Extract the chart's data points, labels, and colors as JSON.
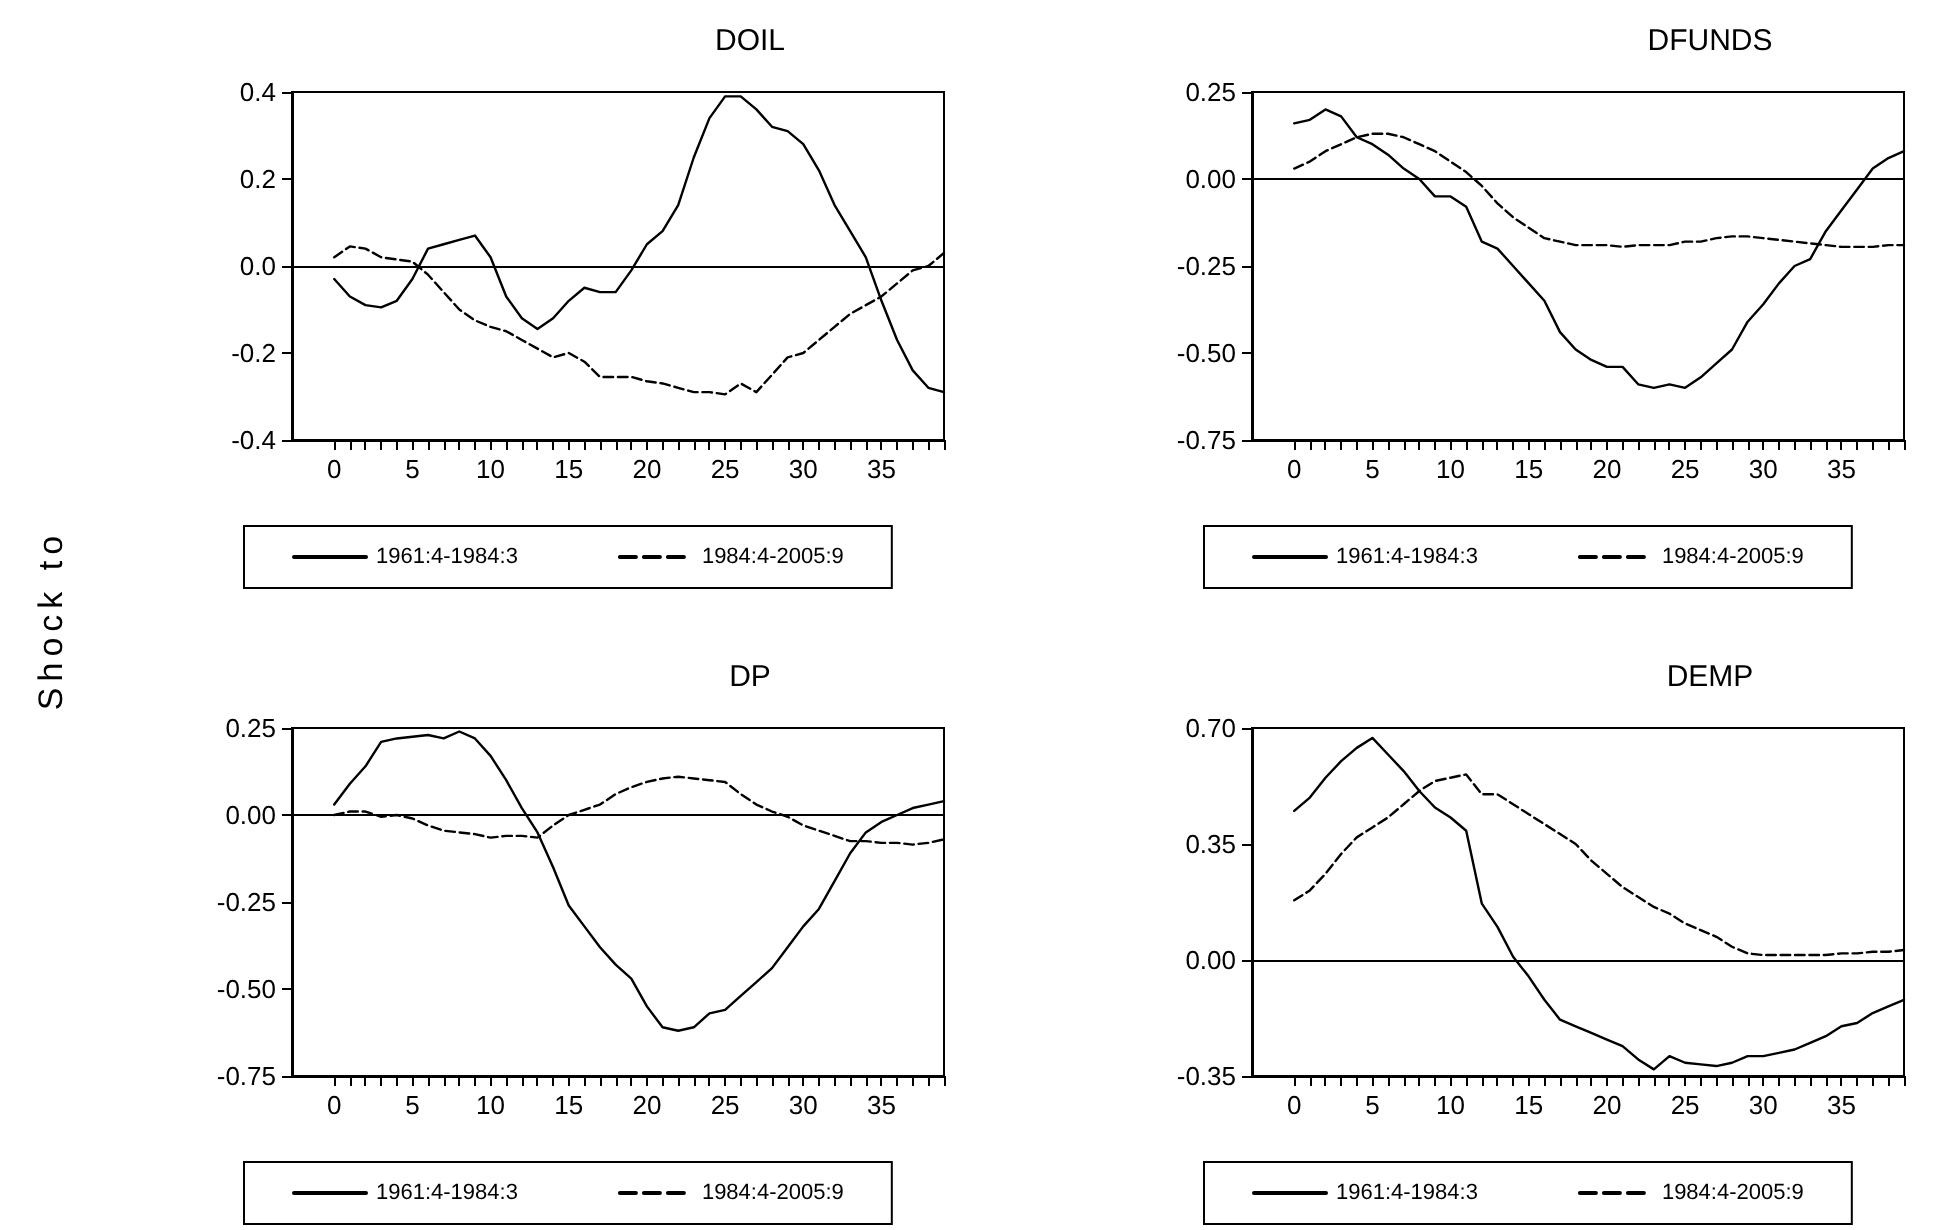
{
  "chart_data": [
    {
      "type": "line",
      "title": "DOIL",
      "ylabel": "Shock to",
      "x": [
        0,
        1,
        2,
        3,
        4,
        5,
        6,
        7,
        8,
        9,
        10,
        11,
        12,
        13,
        14,
        15,
        16,
        17,
        18,
        19,
        20,
        21,
        22,
        23,
        24,
        25,
        26,
        27,
        28,
        29,
        30,
        31,
        32,
        33,
        34,
        35,
        36,
        37,
        38,
        39
      ],
      "xlim": [
        -2.7,
        39
      ],
      "xticks": [
        0,
        {
          "value": 1,
          "label": null
        },
        {
          "value": 2,
          "label": null
        },
        {
          "value": 3,
          "label": null
        },
        {
          "value": 4,
          "label": null
        },
        5,
        {
          "value": 6,
          "label": null
        },
        {
          "value": 7,
          "label": null
        },
        {
          "value": 8,
          "label": null
        },
        {
          "value": 9,
          "label": null
        },
        10,
        {
          "value": 11,
          "label": null
        },
        {
          "value": 12,
          "label": null
        },
        {
          "value": 13,
          "label": null
        },
        {
          "value": 14,
          "label": null
        },
        15,
        {
          "value": 16,
          "label": null
        },
        {
          "value": 17,
          "label": null
        },
        {
          "value": 18,
          "label": null
        },
        {
          "value": 19,
          "label": null
        },
        20,
        {
          "value": 21,
          "label": null
        },
        {
          "value": 22,
          "label": null
        },
        {
          "value": 23,
          "label": null
        },
        {
          "value": 24,
          "label": null
        },
        25,
        {
          "value": 26,
          "label": null
        },
        {
          "value": 27,
          "label": null
        },
        {
          "value": 28,
          "label": null
        },
        {
          "value": 29,
          "label": null
        },
        30,
        {
          "value": 31,
          "label": null
        },
        {
          "value": 32,
          "label": null
        },
        {
          "value": 33,
          "label": null
        },
        {
          "value": 34,
          "label": null
        },
        35,
        {
          "value": 36,
          "label": null
        },
        {
          "value": 37,
          "label": null
        },
        {
          "value": 38,
          "label": null
        },
        {
          "value": 39,
          "label": null
        }
      ],
      "ylim": [
        -0.4,
        0.4
      ],
      "yticks": [
        {
          "value": -0.4,
          "label": "-0.4"
        },
        {
          "value": -0.2,
          "label": "-0.2"
        },
        {
          "value": 0,
          "label": "0.0"
        },
        {
          "value": 0.2,
          "label": "0.2"
        },
        {
          "value": 0.4,
          "label": "0.4"
        }
      ],
      "grid": false,
      "legend": "bottom",
      "marker": "none",
      "ref_lines": [
        {
          "axis": "y",
          "value": 0,
          "color": "#000000"
        }
      ],
      "series": [
        {
          "name": "1961:4-1984:3",
          "color": "#000000",
          "line_style": "solid",
          "values": [
            -0.03,
            -0.07,
            -0.09,
            -0.095,
            -0.08,
            -0.03,
            0.04,
            0.05,
            0.06,
            0.07,
            0.02,
            -0.07,
            -0.12,
            -0.145,
            -0.12,
            -0.08,
            -0.05,
            -0.06,
            -0.06,
            -0.01,
            0.05,
            0.08,
            0.14,
            0.25,
            0.34,
            0.39,
            0.39,
            0.36,
            0.32,
            0.31,
            0.28,
            0.22,
            0.14,
            0.08,
            0.02,
            -0.08,
            -0.17,
            -0.24,
            -0.28,
            -0.29
          ]
        },
        {
          "name": "1984:4-2005:9",
          "color": "#000000",
          "line_style": "dashed",
          "values": [
            0.02,
            0.045,
            0.04,
            0.02,
            0.015,
            0.01,
            -0.02,
            -0.06,
            -0.1,
            -0.125,
            -0.14,
            -0.15,
            -0.17,
            -0.19,
            -0.21,
            -0.2,
            -0.22,
            -0.255,
            -0.255,
            -0.255,
            -0.265,
            -0.27,
            -0.28,
            -0.29,
            -0.29,
            -0.295,
            -0.27,
            -0.29,
            -0.25,
            -0.21,
            -0.2,
            -0.17,
            -0.14,
            -0.11,
            -0.09,
            -0.07,
            -0.04,
            -0.01,
            0.0,
            0.03
          ]
        }
      ]
    },
    {
      "type": "line",
      "title": "DFUNDS",
      "x": [
        0,
        1,
        2,
        3,
        4,
        5,
        6,
        7,
        8,
        9,
        10,
        11,
        12,
        13,
        14,
        15,
        16,
        17,
        18,
        19,
        20,
        21,
        22,
        23,
        24,
        25,
        26,
        27,
        28,
        29,
        30,
        31,
        32,
        33,
        34,
        35,
        36,
        37,
        38,
        39
      ],
      "xlim": [
        -2.7,
        39
      ],
      "xticks": [
        0,
        {
          "value": 1,
          "label": null
        },
        {
          "value": 2,
          "label": null
        },
        {
          "value": 3,
          "label": null
        },
        {
          "value": 4,
          "label": null
        },
        5,
        {
          "value": 6,
          "label": null
        },
        {
          "value": 7,
          "label": null
        },
        {
          "value": 8,
          "label": null
        },
        {
          "value": 9,
          "label": null
        },
        10,
        {
          "value": 11,
          "label": null
        },
        {
          "value": 12,
          "label": null
        },
        {
          "value": 13,
          "label": null
        },
        {
          "value": 14,
          "label": null
        },
        15,
        {
          "value": 16,
          "label": null
        },
        {
          "value": 17,
          "label": null
        },
        {
          "value": 18,
          "label": null
        },
        {
          "value": 19,
          "label": null
        },
        20,
        {
          "value": 21,
          "label": null
        },
        {
          "value": 22,
          "label": null
        },
        {
          "value": 23,
          "label": null
        },
        {
          "value": 24,
          "label": null
        },
        25,
        {
          "value": 26,
          "label": null
        },
        {
          "value": 27,
          "label": null
        },
        {
          "value": 28,
          "label": null
        },
        {
          "value": 29,
          "label": null
        },
        30,
        {
          "value": 31,
          "label": null
        },
        {
          "value": 32,
          "label": null
        },
        {
          "value": 33,
          "label": null
        },
        {
          "value": 34,
          "label": null
        },
        35,
        {
          "value": 36,
          "label": null
        },
        {
          "value": 37,
          "label": null
        },
        {
          "value": 38,
          "label": null
        },
        {
          "value": 39,
          "label": null
        }
      ],
      "ylim": [
        -0.75,
        0.25
      ],
      "yticks": [
        {
          "value": -0.75,
          "label": "-0.75"
        },
        {
          "value": -0.5,
          "label": "-0.50"
        },
        {
          "value": -0.25,
          "label": "-0.25"
        },
        {
          "value": 0,
          "label": "0.00"
        },
        {
          "value": 0.25,
          "label": "0.25"
        }
      ],
      "grid": false,
      "legend": "bottom",
      "marker": "none",
      "ref_lines": [
        {
          "axis": "y",
          "value": 0,
          "color": "#000000"
        }
      ],
      "series": [
        {
          "name": "1961:4-1984:3",
          "color": "#000000",
          "line_style": "solid",
          "values": [
            0.16,
            0.17,
            0.2,
            0.18,
            0.12,
            0.1,
            0.07,
            0.03,
            0.0,
            -0.05,
            -0.05,
            -0.08,
            -0.18,
            -0.2,
            -0.25,
            -0.3,
            -0.35,
            -0.44,
            -0.49,
            -0.52,
            -0.54,
            -0.54,
            -0.59,
            -0.6,
            -0.59,
            -0.6,
            -0.57,
            -0.53,
            -0.49,
            -0.41,
            -0.36,
            -0.3,
            -0.25,
            -0.23,
            -0.15,
            -0.09,
            -0.03,
            0.03,
            0.06,
            0.08
          ]
        },
        {
          "name": "1984:4-2005:9",
          "color": "#000000",
          "line_style": "dashed",
          "values": [
            0.03,
            0.05,
            0.08,
            0.1,
            0.12,
            0.13,
            0.13,
            0.12,
            0.1,
            0.08,
            0.05,
            0.02,
            -0.02,
            -0.07,
            -0.11,
            -0.14,
            -0.17,
            -0.18,
            -0.19,
            -0.19,
            -0.19,
            -0.195,
            -0.19,
            -0.19,
            -0.19,
            -0.18,
            -0.18,
            -0.17,
            -0.165,
            -0.165,
            -0.17,
            -0.175,
            -0.18,
            -0.185,
            -0.19,
            -0.195,
            -0.195,
            -0.195,
            -0.19,
            -0.19
          ]
        }
      ]
    },
    {
      "type": "line",
      "title": "DP",
      "x": [
        0,
        1,
        2,
        3,
        4,
        5,
        6,
        7,
        8,
        9,
        10,
        11,
        12,
        13,
        14,
        15,
        16,
        17,
        18,
        19,
        20,
        21,
        22,
        23,
        24,
        25,
        26,
        27,
        28,
        29,
        30,
        31,
        32,
        33,
        34,
        35,
        36,
        37,
        38,
        39
      ],
      "xlim": [
        -2.7,
        39
      ],
      "xticks": [
        0,
        {
          "value": 1,
          "label": null
        },
        {
          "value": 2,
          "label": null
        },
        {
          "value": 3,
          "label": null
        },
        {
          "value": 4,
          "label": null
        },
        5,
        {
          "value": 6,
          "label": null
        },
        {
          "value": 7,
          "label": null
        },
        {
          "value": 8,
          "label": null
        },
        {
          "value": 9,
          "label": null
        },
        10,
        {
          "value": 11,
          "label": null
        },
        {
          "value": 12,
          "label": null
        },
        {
          "value": 13,
          "label": null
        },
        {
          "value": 14,
          "label": null
        },
        15,
        {
          "value": 16,
          "label": null
        },
        {
          "value": 17,
          "label": null
        },
        {
          "value": 18,
          "label": null
        },
        {
          "value": 19,
          "label": null
        },
        20,
        {
          "value": 21,
          "label": null
        },
        {
          "value": 22,
          "label": null
        },
        {
          "value": 23,
          "label": null
        },
        {
          "value": 24,
          "label": null
        },
        25,
        {
          "value": 26,
          "label": null
        },
        {
          "value": 27,
          "label": null
        },
        {
          "value": 28,
          "label": null
        },
        {
          "value": 29,
          "label": null
        },
        30,
        {
          "value": 31,
          "label": null
        },
        {
          "value": 32,
          "label": null
        },
        {
          "value": 33,
          "label": null
        },
        {
          "value": 34,
          "label": null
        },
        35,
        {
          "value": 36,
          "label": null
        },
        {
          "value": 37,
          "label": null
        },
        {
          "value": 38,
          "label": null
        },
        {
          "value": 39,
          "label": null
        }
      ],
      "ylim": [
        -0.75,
        0.25
      ],
      "yticks": [
        {
          "value": -0.75,
          "label": "-0.75"
        },
        {
          "value": -0.5,
          "label": "-0.50"
        },
        {
          "value": -0.25,
          "label": "-0.25"
        },
        {
          "value": 0,
          "label": "0.00"
        },
        {
          "value": 0.25,
          "label": "0.25"
        }
      ],
      "grid": false,
      "legend": "bottom",
      "marker": "none",
      "ref_lines": [
        {
          "axis": "y",
          "value": 0,
          "color": "#000000"
        }
      ],
      "series": [
        {
          "name": "1961:4-1984:3",
          "color": "#000000",
          "line_style": "solid",
          "values": [
            0.03,
            0.09,
            0.14,
            0.21,
            0.22,
            0.225,
            0.23,
            0.22,
            0.24,
            0.22,
            0.17,
            0.1,
            0.02,
            -0.05,
            -0.15,
            -0.26,
            -0.32,
            -0.38,
            -0.43,
            -0.47,
            -0.55,
            -0.61,
            -0.62,
            -0.61,
            -0.57,
            -0.56,
            -0.52,
            -0.48,
            -0.44,
            -0.38,
            -0.32,
            -0.27,
            -0.19,
            -0.11,
            -0.05,
            -0.02,
            0.0,
            0.02,
            0.03,
            0.04
          ]
        },
        {
          "name": "1984:4-2005:9",
          "color": "#000000",
          "line_style": "dashed",
          "values": [
            0.0,
            0.01,
            0.01,
            -0.005,
            0.0,
            -0.01,
            -0.03,
            -0.045,
            -0.05,
            -0.055,
            -0.065,
            -0.06,
            -0.06,
            -0.065,
            -0.03,
            0.0,
            0.015,
            0.03,
            0.06,
            0.08,
            0.095,
            0.105,
            0.11,
            0.105,
            0.1,
            0.095,
            0.06,
            0.03,
            0.01,
            -0.005,
            -0.03,
            -0.045,
            -0.06,
            -0.075,
            -0.075,
            -0.08,
            -0.08,
            -0.085,
            -0.08,
            -0.07
          ]
        }
      ]
    },
    {
      "type": "line",
      "title": "DEMP",
      "x": [
        0,
        1,
        2,
        3,
        4,
        5,
        6,
        7,
        8,
        9,
        10,
        11,
        12,
        13,
        14,
        15,
        16,
        17,
        18,
        19,
        20,
        21,
        22,
        23,
        24,
        25,
        26,
        27,
        28,
        29,
        30,
        31,
        32,
        33,
        34,
        35,
        36,
        37,
        38,
        39
      ],
      "xlim": [
        -2.7,
        39
      ],
      "xticks": [
        0,
        {
          "value": 1,
          "label": null
        },
        {
          "value": 2,
          "label": null
        },
        {
          "value": 3,
          "label": null
        },
        {
          "value": 4,
          "label": null
        },
        5,
        {
          "value": 6,
          "label": null
        },
        {
          "value": 7,
          "label": null
        },
        {
          "value": 8,
          "label": null
        },
        {
          "value": 9,
          "label": null
        },
        10,
        {
          "value": 11,
          "label": null
        },
        {
          "value": 12,
          "label": null
        },
        {
          "value": 13,
          "label": null
        },
        {
          "value": 14,
          "label": null
        },
        15,
        {
          "value": 16,
          "label": null
        },
        {
          "value": 17,
          "label": null
        },
        {
          "value": 18,
          "label": null
        },
        {
          "value": 19,
          "label": null
        },
        20,
        {
          "value": 21,
          "label": null
        },
        {
          "value": 22,
          "label": null
        },
        {
          "value": 23,
          "label": null
        },
        {
          "value": 24,
          "label": null
        },
        25,
        {
          "value": 26,
          "label": null
        },
        {
          "value": 27,
          "label": null
        },
        {
          "value": 28,
          "label": null
        },
        {
          "value": 29,
          "label": null
        },
        30,
        {
          "value": 31,
          "label": null
        },
        {
          "value": 32,
          "label": null
        },
        {
          "value": 33,
          "label": null
        },
        {
          "value": 34,
          "label": null
        },
        35,
        {
          "value": 36,
          "label": null
        },
        {
          "value": 37,
          "label": null
        },
        {
          "value": 38,
          "label": null
        },
        {
          "value": 39,
          "label": null
        }
      ],
      "ylim": [
        -0.35,
        0.7
      ],
      "yticks": [
        {
          "value": -0.35,
          "label": "-0.35"
        },
        {
          "value": 0,
          "label": "0.00"
        },
        {
          "value": 0.35,
          "label": "0.35"
        },
        {
          "value": 0.7,
          "label": "0.70"
        }
      ],
      "grid": false,
      "legend": "bottom",
      "marker": "none",
      "ref_lines": [
        {
          "axis": "y",
          "value": 0,
          "color": "#000000"
        }
      ],
      "series": [
        {
          "name": "1961:4-1984:3",
          "color": "#000000",
          "line_style": "solid",
          "values": [
            0.45,
            0.49,
            0.55,
            0.6,
            0.64,
            0.67,
            0.62,
            0.57,
            0.51,
            0.46,
            0.43,
            0.39,
            0.17,
            0.1,
            0.01,
            -0.05,
            -0.12,
            -0.18,
            -0.2,
            -0.22,
            -0.24,
            -0.26,
            -0.3,
            -0.33,
            -0.29,
            -0.31,
            -0.315,
            -0.32,
            -0.31,
            -0.29,
            -0.29,
            -0.28,
            -0.27,
            -0.25,
            -0.23,
            -0.2,
            -0.19,
            -0.16,
            -0.14,
            -0.12
          ]
        },
        {
          "name": "1984:4-2005:9",
          "color": "#000000",
          "line_style": "dashed",
          "values": [
            0.18,
            0.21,
            0.26,
            0.32,
            0.37,
            0.4,
            0.43,
            0.47,
            0.51,
            0.54,
            0.55,
            0.56,
            0.5,
            0.5,
            0.47,
            0.44,
            0.41,
            0.38,
            0.35,
            0.3,
            0.26,
            0.22,
            0.19,
            0.16,
            0.14,
            0.11,
            0.09,
            0.07,
            0.04,
            0.02,
            0.015,
            0.015,
            0.015,
            0.015,
            0.015,
            0.02,
            0.02,
            0.025,
            0.025,
            0.03
          ]
        }
      ]
    }
  ]
}
